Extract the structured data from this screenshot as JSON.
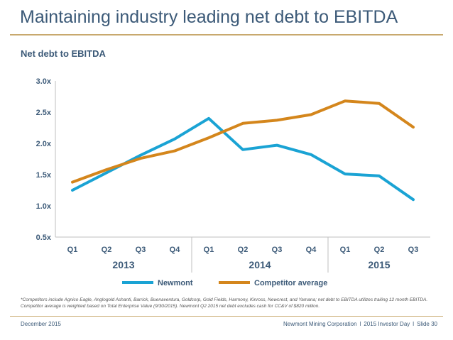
{
  "slide": {
    "title": "Maintaining industry leading net debt to EBITDA",
    "subtitle": "Net debt to EBITDA",
    "footnote": "*Competitors include Agnico Eagle, Anglogold Ashanti, Barrick, Buenaventura, Goldcorp, Gold Fields, Harmony, Kinross, Newcrest, and Yamana; net debt to EBITDA utilizes trailing 12 month EBITDA. Competitor average is weighted based on Total Enterprise Value (9/30/2015). Newmont Q2 2015 net debt excludes cash for CC&V of $820 million.",
    "footer_date": "December 2015",
    "footer_company": "Newmont Mining Corporation",
    "footer_event": "2015 Investor Day",
    "footer_slide": "Slide 30"
  },
  "chart_data": {
    "type": "line",
    "title": "Net debt to EBITDA",
    "categories": [
      "Q1",
      "Q2",
      "Q3",
      "Q4",
      "Q1",
      "Q2",
      "Q3",
      "Q4",
      "Q1",
      "Q2",
      "Q3"
    ],
    "year_groups": [
      {
        "label": "2013",
        "start": 0,
        "end": 3
      },
      {
        "label": "2014",
        "start": 4,
        "end": 7
      },
      {
        "label": "2015",
        "start": 8,
        "end": 10
      }
    ],
    "y_ticks": [
      "0.5x",
      "1.0x",
      "1.5x",
      "2.0x",
      "2.5x",
      "3.0x"
    ],
    "y_tick_values": [
      0.5,
      1.0,
      1.5,
      2.0,
      2.5,
      3.0
    ],
    "ylim": [
      0.5,
      3.0
    ],
    "series": [
      {
        "name": "Newmont",
        "color": "#1aa3d4",
        "values": [
          1.25,
          1.53,
          1.81,
          2.07,
          2.4,
          1.9,
          1.97,
          1.82,
          1.51,
          1.48,
          1.1
        ]
      },
      {
        "name": "Competitor average",
        "color": "#d4861c",
        "values": [
          1.38,
          1.58,
          1.76,
          1.88,
          2.09,
          2.32,
          2.37,
          2.46,
          2.68,
          2.64,
          2.26
        ]
      }
    ],
    "legend_position": "bottom"
  }
}
